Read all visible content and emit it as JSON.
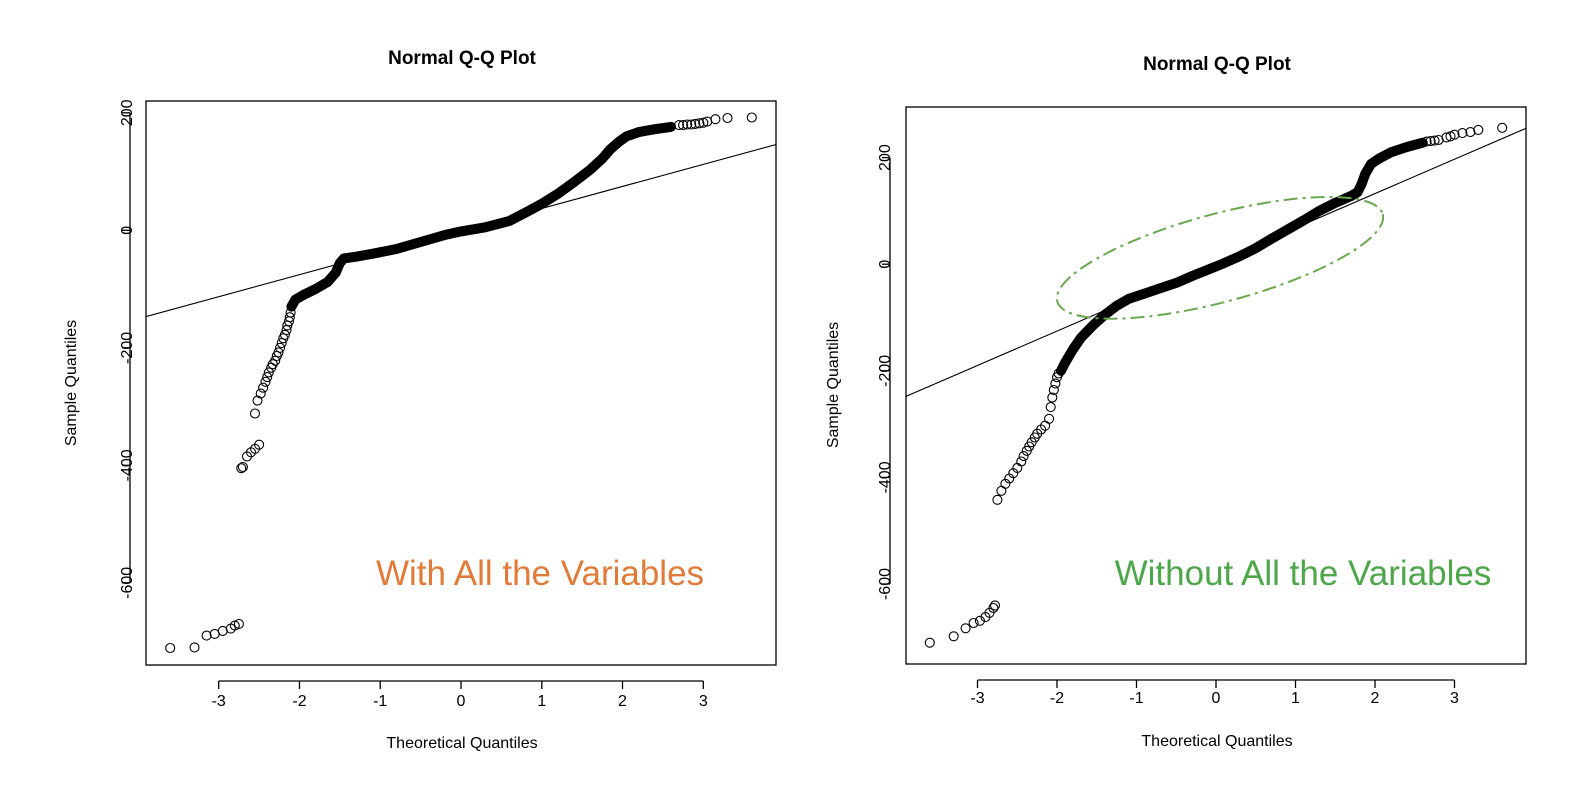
{
  "chart_data": [
    {
      "type": "scatter",
      "title": "Normal Q-Q Plot",
      "xlabel": "Theoretical Quantiles",
      "ylabel": "Sample Quantiles",
      "xlim": [
        -3.9,
        3.9
      ],
      "ylim": [
        -740,
        220
      ],
      "x_ticks": [
        -3,
        -2,
        -1,
        0,
        1,
        2,
        3
      ],
      "y_ticks": [
        200,
        0,
        -200,
        -400,
        -600
      ],
      "annotation": "With All the Variables",
      "annotation_color": "#e07b39",
      "reference_line": [
        [
          -3.9,
          -147
        ],
        [
          3.9,
          146
        ]
      ],
      "highlight": null,
      "curve": [
        [
          -2.1,
          -130
        ],
        [
          -2.05,
          -118
        ],
        [
          -1.95,
          -110
        ],
        [
          -1.8,
          -100
        ],
        [
          -1.65,
          -88
        ],
        [
          -1.55,
          -72
        ],
        [
          -1.5,
          -56
        ],
        [
          -1.45,
          -48
        ],
        [
          -1.3,
          -45
        ],
        [
          -1.1,
          -40
        ],
        [
          -0.8,
          -32
        ],
        [
          -0.5,
          -20
        ],
        [
          -0.2,
          -8
        ],
        [
          0.0,
          -2
        ],
        [
          0.3,
          5
        ],
        [
          0.6,
          16
        ],
        [
          0.8,
          30
        ],
        [
          1.0,
          45
        ],
        [
          1.2,
          62
        ],
        [
          1.4,
          82
        ],
        [
          1.6,
          103
        ],
        [
          1.75,
          122
        ],
        [
          1.85,
          138
        ],
        [
          1.95,
          150
        ],
        [
          2.05,
          160
        ],
        [
          2.2,
          167
        ],
        [
          2.4,
          172
        ],
        [
          2.6,
          176
        ]
      ],
      "points": [
        [
          -3.6,
          -711
        ],
        [
          -3.3,
          -710
        ],
        [
          -3.15,
          -690
        ],
        [
          -3.05,
          -687
        ],
        [
          -2.95,
          -682
        ],
        [
          -2.85,
          -678
        ],
        [
          -2.8,
          -673
        ],
        [
          -2.75,
          -670
        ],
        [
          -2.72,
          -405
        ],
        [
          -2.7,
          -403
        ],
        [
          -2.65,
          -385
        ],
        [
          -2.6,
          -378
        ],
        [
          -2.55,
          -372
        ],
        [
          -2.5,
          -365
        ],
        [
          -2.55,
          -312
        ],
        [
          -2.52,
          -290
        ],
        [
          -2.48,
          -278
        ],
        [
          -2.45,
          -268
        ],
        [
          -2.42,
          -258
        ],
        [
          -2.4,
          -250
        ],
        [
          -2.38,
          -242
        ],
        [
          -2.35,
          -234
        ],
        [
          -2.33,
          -228
        ],
        [
          -2.3,
          -222
        ],
        [
          -2.28,
          -214
        ],
        [
          -2.26,
          -208
        ],
        [
          -2.24,
          -200
        ],
        [
          -2.22,
          -192
        ],
        [
          -2.2,
          -184
        ],
        [
          -2.18,
          -178
        ],
        [
          -2.16,
          -170
        ],
        [
          -2.15,
          -162
        ],
        [
          -2.13,
          -155
        ],
        [
          -2.12,
          -148
        ],
        [
          -2.11,
          -140
        ],
        [
          2.7,
          179
        ],
        [
          2.75,
          179
        ],
        [
          2.8,
          180
        ],
        [
          2.85,
          180
        ],
        [
          2.9,
          181
        ],
        [
          2.95,
          182
        ],
        [
          3.0,
          183
        ],
        [
          3.05,
          185
        ],
        [
          3.15,
          189
        ],
        [
          3.3,
          191
        ],
        [
          3.6,
          192
        ]
      ]
    },
    {
      "type": "scatter",
      "title": "Normal Q-Q Plot",
      "xlabel": "Theoretical Quantiles",
      "ylabel": "Sample Quantiles",
      "xlim": [
        -3.9,
        3.9
      ],
      "ylim": [
        -750,
        295
      ],
      "x_ticks": [
        -3,
        -2,
        -1,
        0,
        1,
        2,
        3
      ],
      "y_ticks": [
        200,
        0,
        -200,
        -400,
        -600
      ],
      "annotation": "Without All the Variables",
      "annotation_color": "#4ea64a",
      "reference_line": [
        [
          -3.9,
          -248
        ],
        [
          3.9,
          255
        ]
      ],
      "highlight": {
        "cx": 0.05,
        "cy": 12,
        "rx": 2.12,
        "ry": 44,
        "angle": -15,
        "color": "#6aa84f",
        "anchor_a": [
          -2.05,
          -130
        ],
        "anchor_b": [
          2.15,
          155
        ]
      },
      "curve": [
        [
          -1.95,
          -200
        ],
        [
          -1.9,
          -185
        ],
        [
          -1.8,
          -160
        ],
        [
          -1.7,
          -138
        ],
        [
          -1.55,
          -115
        ],
        [
          -1.4,
          -95
        ],
        [
          -1.25,
          -78
        ],
        [
          -1.1,
          -65
        ],
        [
          -0.9,
          -55
        ],
        [
          -0.7,
          -45
        ],
        [
          -0.5,
          -35
        ],
        [
          -0.3,
          -22
        ],
        [
          -0.1,
          -10
        ],
        [
          0.1,
          2
        ],
        [
          0.3,
          15
        ],
        [
          0.5,
          30
        ],
        [
          0.7,
          48
        ],
        [
          0.9,
          65
        ],
        [
          1.1,
          82
        ],
        [
          1.3,
          100
        ],
        [
          1.5,
          115
        ],
        [
          1.7,
          128
        ],
        [
          1.78,
          135
        ],
        [
          1.83,
          150
        ],
        [
          1.88,
          170
        ],
        [
          1.95,
          188
        ],
        [
          2.05,
          198
        ],
        [
          2.2,
          210
        ],
        [
          2.4,
          220
        ],
        [
          2.6,
          228
        ]
      ],
      "points": [
        [
          -3.6,
          -710
        ],
        [
          -3.3,
          -698
        ],
        [
          -3.15,
          -683
        ],
        [
          -3.05,
          -673
        ],
        [
          -2.97,
          -669
        ],
        [
          -2.9,
          -662
        ],
        [
          -2.85,
          -654
        ],
        [
          -2.8,
          -645
        ],
        [
          -2.78,
          -640
        ],
        [
          -2.75,
          -442
        ],
        [
          -2.7,
          -425
        ],
        [
          -2.65,
          -412
        ],
        [
          -2.6,
          -402
        ],
        [
          -2.55,
          -392
        ],
        [
          -2.5,
          -382
        ],
        [
          -2.45,
          -370
        ],
        [
          -2.42,
          -360
        ],
        [
          -2.38,
          -350
        ],
        [
          -2.35,
          -342
        ],
        [
          -2.32,
          -334
        ],
        [
          -2.28,
          -325
        ],
        [
          -2.25,
          -318
        ],
        [
          -2.2,
          -310
        ],
        [
          -2.15,
          -303
        ],
        [
          -2.1,
          -290
        ],
        [
          -2.08,
          -268
        ],
        [
          -2.06,
          -250
        ],
        [
          -2.04,
          -236
        ],
        [
          -2.02,
          -224
        ],
        [
          -2.0,
          -212
        ],
        [
          -1.98,
          -205
        ],
        [
          2.65,
          230
        ],
        [
          2.7,
          231
        ],
        [
          2.75,
          232
        ],
        [
          2.8,
          233
        ],
        [
          2.9,
          238
        ],
        [
          2.95,
          240
        ],
        [
          3.0,
          243
        ],
        [
          3.1,
          246
        ],
        [
          3.2,
          248
        ],
        [
          3.3,
          252
        ],
        [
          3.6,
          256
        ]
      ]
    }
  ]
}
